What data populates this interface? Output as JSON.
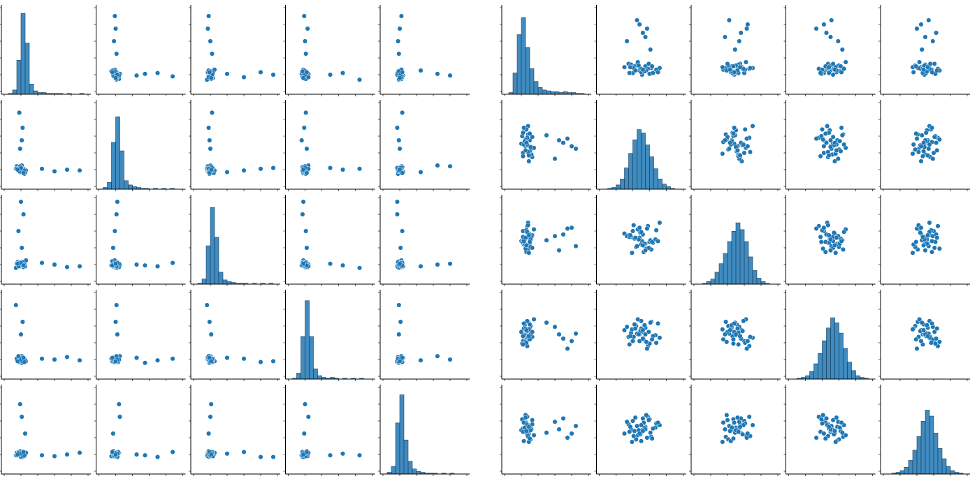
{
  "chart_data": [
    {
      "type": "pairplot",
      "color": "#1f77b4",
      "lim": [
        0,
        100
      ],
      "ticks": [
        0,
        20,
        40,
        60,
        80,
        100
      ],
      "hist_ylim": [
        0,
        100
      ],
      "columns": [
        [
          18,
          22,
          15,
          25,
          20,
          17,
          23,
          19,
          21,
          16,
          24,
          20,
          14,
          26,
          19,
          22,
          18,
          21,
          17,
          23,
          20,
          19,
          25,
          15,
          22,
          18,
          60,
          75,
          90,
          45,
          20,
          21,
          19,
          18,
          22,
          17,
          24,
          20,
          23,
          16
        ],
        [
          20,
          18,
          24,
          16,
          22,
          19,
          21,
          17,
          25,
          20,
          15,
          23,
          21,
          19,
          45,
          70,
          88,
          55,
          20,
          18,
          22,
          19,
          17,
          21,
          20,
          23,
          18,
          20,
          19,
          21,
          22,
          17,
          24,
          18,
          20,
          21,
          19,
          22,
          16,
          20
        ],
        [
          22,
          19,
          17,
          24,
          21,
          60,
          80,
          18,
          20,
          23,
          19,
          21,
          16,
          25,
          20,
          18,
          22,
          19,
          21,
          17,
          23,
          20,
          18,
          21,
          19,
          22,
          20,
          17,
          18,
          22,
          95,
          40,
          21,
          19,
          23,
          18,
          20,
          22,
          19,
          21
        ],
        [
          19,
          23,
          20,
          18,
          50,
          21,
          17,
          22,
          24,
          19,
          21,
          20,
          85,
          18,
          22,
          19,
          21,
          16,
          23,
          20,
          18,
          22,
          19,
          21,
          65,
          17,
          20,
          23,
          19,
          21,
          18,
          22,
          20,
          19,
          21,
          24,
          17,
          20,
          22,
          18
        ],
        [
          21,
          18,
          22,
          20,
          19,
          23,
          17,
          24,
          65,
          20,
          18,
          21,
          19,
          22,
          20,
          17,
          23,
          19,
          21,
          18,
          22,
          20,
          45,
          19,
          21,
          23,
          18,
          20,
          22,
          19,
          17,
          21,
          80,
          20,
          18,
          22,
          19,
          21,
          23,
          20
        ]
      ],
      "histograms": [
        {
          "bins": [
            0,
            5,
            10,
            15,
            20,
            25,
            30,
            35,
            40,
            45,
            50,
            55,
            60,
            65,
            70,
            75,
            80,
            85,
            90,
            95,
            100
          ],
          "counts": [
            0,
            1,
            5,
            40,
            95,
            60,
            12,
            4,
            2,
            2,
            1,
            1,
            1,
            1,
            0,
            1,
            0,
            0,
            1,
            0
          ]
        },
        {
          "bins": [
            0,
            5,
            10,
            15,
            20,
            25,
            30,
            35,
            40,
            45,
            50,
            55,
            60,
            65,
            70,
            75,
            80,
            85,
            90,
            95,
            100
          ],
          "counts": [
            0,
            2,
            8,
            55,
            85,
            45,
            10,
            5,
            3,
            2,
            1,
            1,
            0,
            1,
            0,
            1,
            0,
            1,
            0,
            0
          ]
        },
        {
          "bins": [
            0,
            5,
            10,
            15,
            20,
            25,
            30,
            35,
            40,
            45,
            50,
            55,
            60,
            65,
            70,
            75,
            80,
            85,
            90,
            95,
            100
          ],
          "counts": [
            0,
            1,
            6,
            45,
            90,
            55,
            14,
            5,
            3,
            2,
            1,
            1,
            1,
            0,
            1,
            0,
            1,
            0,
            1,
            0
          ]
        },
        {
          "bins": [
            0,
            5,
            10,
            15,
            20,
            25,
            30,
            35,
            40,
            45,
            50,
            55,
            60,
            65,
            70,
            75,
            80,
            85,
            90,
            95,
            100
          ],
          "counts": [
            0,
            1,
            7,
            50,
            92,
            50,
            12,
            4,
            2,
            1,
            2,
            1,
            0,
            1,
            0,
            1,
            0,
            1,
            0,
            0
          ]
        },
        {
          "bins": [
            0,
            5,
            10,
            15,
            20,
            25,
            30,
            35,
            40,
            45,
            50,
            55,
            60,
            65,
            70,
            75,
            80,
            85,
            90,
            95,
            100
          ],
          "counts": [
            0,
            2,
            9,
            60,
            93,
            40,
            15,
            6,
            3,
            2,
            1,
            1,
            1,
            0,
            1,
            0,
            1,
            0,
            0,
            0
          ]
        }
      ]
    },
    {
      "type": "pairplot",
      "color": "#1f77b4",
      "lim": [
        0,
        100
      ],
      "ticks": [
        0,
        20,
        40,
        60,
        80,
        100
      ],
      "hist_ylim": [
        0,
        100
      ],
      "columns": [
        [
          25,
          30,
          22,
          28,
          33,
          20,
          27,
          31,
          24,
          29,
          26,
          35,
          21,
          32,
          23,
          28,
          30,
          25,
          27,
          22,
          60,
          75,
          85,
          50,
          70,
          29,
          26,
          31,
          24,
          28,
          33,
          22,
          27,
          30,
          25,
          65,
          80,
          23,
          29,
          26
        ],
        [
          48,
          55,
          40,
          62,
          35,
          51,
          58,
          44,
          67,
          30,
          53,
          46,
          60,
          38,
          50,
          72,
          42,
          56,
          49,
          64,
          33,
          57,
          45,
          61,
          52,
          39,
          68,
          47,
          54,
          41,
          59,
          36,
          50,
          63,
          43,
          55,
          48,
          70,
          37,
          52
        ],
        [
          52,
          45,
          60,
          38,
          55,
          48,
          66,
          41,
          50,
          57,
          35,
          62,
          47,
          53,
          44,
          70,
          51,
          39,
          58,
          46,
          54,
          63,
          42,
          49,
          56,
          34,
          61,
          50,
          45,
          67,
          40,
          53,
          59,
          47,
          52,
          37,
          64,
          48,
          55,
          43
        ],
        [
          50,
          58,
          42,
          65,
          47,
          53,
          36,
          60,
          49,
          55,
          44,
          68,
          39,
          52,
          57,
          46,
          62,
          41,
          54,
          48,
          59,
          33,
          51,
          64,
          45,
          56,
          40,
          50,
          61,
          47,
          53,
          38,
          66,
          44,
          57,
          50,
          42,
          63,
          48,
          55
        ],
        [
          47,
          53,
          60,
          41,
          56,
          49,
          65,
          38,
          52,
          45,
          58,
          43,
          62,
          50,
          36,
          55,
          48,
          67,
          44,
          51,
          59,
          40,
          54,
          46,
          63,
          35,
          57,
          49,
          52,
          42,
          61,
          47,
          55,
          39,
          64,
          50,
          45,
          58,
          53,
          48
        ]
      ],
      "histograms": [
        {
          "bins": [
            0,
            5,
            10,
            15,
            20,
            25,
            30,
            35,
            40,
            45,
            50,
            55,
            60,
            65,
            70,
            75,
            80,
            85,
            90,
            95,
            100
          ],
          "counts": [
            0,
            2,
            25,
            70,
            90,
            55,
            30,
            15,
            8,
            5,
            4,
            3,
            3,
            2,
            3,
            2,
            2,
            1,
            1,
            0
          ]
        },
        {
          "bins": [
            0,
            5,
            10,
            15,
            20,
            25,
            30,
            35,
            40,
            45,
            50,
            55,
            60,
            65,
            70,
            75,
            80,
            85,
            90,
            95,
            100
          ],
          "counts": [
            0,
            0,
            1,
            2,
            5,
            12,
            25,
            42,
            58,
            70,
            66,
            52,
            38,
            24,
            12,
            6,
            3,
            1,
            0,
            0
          ]
        },
        {
          "bins": [
            0,
            5,
            10,
            15,
            20,
            25,
            30,
            35,
            40,
            45,
            50,
            55,
            60,
            65,
            70,
            75,
            80,
            85,
            90,
            95,
            100
          ],
          "counts": [
            0,
            0,
            1,
            3,
            6,
            14,
            24,
            36,
            50,
            62,
            72,
            64,
            50,
            32,
            16,
            7,
            3,
            1,
            0,
            0
          ]
        },
        {
          "bins": [
            0,
            5,
            10,
            15,
            20,
            25,
            30,
            35,
            40,
            45,
            50,
            55,
            60,
            65,
            70,
            75,
            80,
            85,
            90,
            95,
            100
          ],
          "counts": [
            0,
            0,
            1,
            2,
            4,
            9,
            18,
            30,
            45,
            60,
            72,
            66,
            54,
            36,
            20,
            10,
            4,
            2,
            1,
            0
          ]
        },
        {
          "bins": [
            0,
            5,
            10,
            15,
            20,
            25,
            30,
            35,
            40,
            45,
            50,
            55,
            60,
            65,
            70,
            75,
            80,
            85,
            90,
            95,
            100
          ],
          "counts": [
            0,
            0,
            1,
            2,
            4,
            8,
            16,
            28,
            44,
            62,
            75,
            68,
            48,
            30,
            18,
            9,
            4,
            2,
            1,
            0
          ]
        }
      ]
    }
  ]
}
